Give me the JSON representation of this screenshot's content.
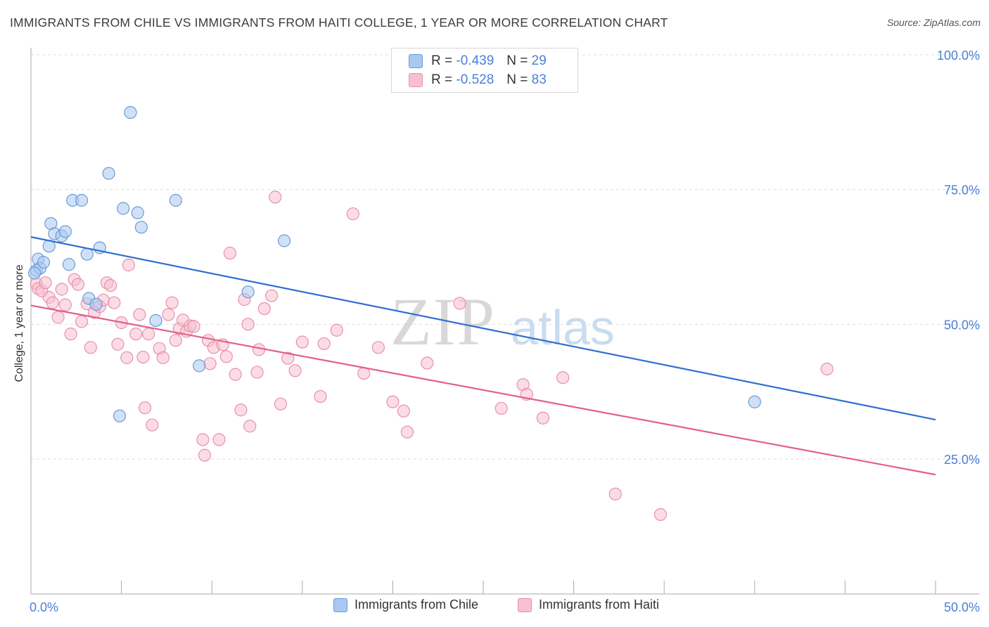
{
  "title": "IMMIGRANTS FROM CHILE VS IMMIGRANTS FROM HAITI COLLEGE, 1 YEAR OR MORE CORRELATION CHART",
  "source": "Source: ZipAtlas.com",
  "watermark": {
    "zip": "ZIP",
    "atlas": "atlas"
  },
  "legend": {
    "chile": {
      "r_label": "R =",
      "r_value": "-0.439",
      "n_label": "N =",
      "n_value": "29",
      "name": "Immigrants from Chile"
    },
    "haiti": {
      "r_label": "R =",
      "r_value": "-0.528",
      "n_label": "N =",
      "n_value": "83",
      "name": "Immigrants from Haiti"
    }
  },
  "colors": {
    "chile_fill": "#aac8f0",
    "chile_stroke": "#6a9bd8",
    "chile_line": "#2f6fd0",
    "haiti_fill": "#f7c0d0",
    "haiti_stroke": "#e890ac",
    "haiti_line": "#e0608a",
    "axis_text": "#4a7fd6",
    "grid": "#dddddd"
  },
  "chart_data": {
    "type": "scatter",
    "title": "IMMIGRANTS FROM CHILE VS IMMIGRANTS FROM HAITI COLLEGE, 1 YEAR OR MORE CORRELATION CHART",
    "xlabel": "",
    "ylabel": "College, 1 year or more",
    "xlim": [
      0,
      50
    ],
    "ylim": [
      0,
      105
    ],
    "x_tick_labels": [
      "0.0%",
      "50.0%"
    ],
    "y_tick_values": [
      25,
      50,
      75,
      100
    ],
    "y_tick_labels": [
      "25.0%",
      "50.0%",
      "75.0%",
      "100.0%"
    ],
    "grid": true,
    "legend_placement": "top-center and bottom",
    "series": [
      {
        "name": "Immigrants from Chile",
        "r": -0.439,
        "n": 29,
        "trend": {
          "x": [
            0,
            50
          ],
          "y": [
            66.2,
            32.3
          ]
        },
        "points": [
          [
            0.3,
            60.0
          ],
          [
            0.4,
            62.1
          ],
          [
            0.5,
            60.4
          ],
          [
            0.7,
            61.5
          ],
          [
            1.0,
            64.5
          ],
          [
            1.1,
            68.7
          ],
          [
            1.3,
            66.8
          ],
          [
            1.7,
            66.4
          ],
          [
            1.9,
            67.2
          ],
          [
            2.1,
            61.1
          ],
          [
            2.3,
            73.0
          ],
          [
            2.8,
            73.0
          ],
          [
            3.1,
            63.0
          ],
          [
            3.2,
            54.8
          ],
          [
            3.6,
            53.7
          ],
          [
            3.8,
            64.2
          ],
          [
            4.3,
            78.0
          ],
          [
            4.9,
            33.0
          ],
          [
            5.1,
            71.5
          ],
          [
            5.5,
            89.3
          ],
          [
            5.9,
            70.7
          ],
          [
            6.1,
            68.0
          ],
          [
            6.9,
            50.7
          ],
          [
            8.0,
            73.0
          ],
          [
            9.3,
            42.3
          ],
          [
            12.0,
            56.0
          ],
          [
            14.0,
            65.5
          ],
          [
            40.0,
            35.6
          ],
          [
            0.2,
            59.5
          ]
        ]
      },
      {
        "name": "Immigrants from Haiti",
        "r": -0.528,
        "n": 83,
        "trend": {
          "x": [
            0,
            50
          ],
          "y": [
            53.5,
            22.1
          ]
        },
        "points": [
          [
            0.3,
            57.5
          ],
          [
            0.4,
            56.6
          ],
          [
            0.6,
            56.2
          ],
          [
            0.8,
            57.7
          ],
          [
            1.0,
            55.0
          ],
          [
            1.2,
            54.0
          ],
          [
            1.5,
            51.3
          ],
          [
            1.7,
            56.5
          ],
          [
            1.9,
            53.6
          ],
          [
            2.2,
            48.2
          ],
          [
            2.4,
            58.3
          ],
          [
            2.6,
            57.4
          ],
          [
            2.8,
            50.5
          ],
          [
            3.1,
            53.8
          ],
          [
            3.3,
            45.7
          ],
          [
            3.5,
            52.2
          ],
          [
            3.8,
            53.3
          ],
          [
            4.0,
            54.5
          ],
          [
            4.2,
            57.7
          ],
          [
            4.4,
            57.2
          ],
          [
            4.6,
            54.0
          ],
          [
            4.8,
            46.3
          ],
          [
            5.0,
            50.3
          ],
          [
            5.3,
            43.8
          ],
          [
            5.4,
            61.0
          ],
          [
            5.8,
            48.2
          ],
          [
            6.0,
            51.8
          ],
          [
            6.2,
            43.9
          ],
          [
            6.3,
            34.5
          ],
          [
            6.5,
            48.2
          ],
          [
            6.7,
            31.3
          ],
          [
            7.1,
            45.5
          ],
          [
            7.3,
            43.8
          ],
          [
            7.6,
            51.8
          ],
          [
            7.8,
            54.0
          ],
          [
            8.0,
            47.0
          ],
          [
            8.2,
            49.2
          ],
          [
            8.4,
            50.8
          ],
          [
            8.6,
            48.7
          ],
          [
            8.8,
            49.7
          ],
          [
            9.0,
            49.6
          ],
          [
            9.5,
            28.6
          ],
          [
            9.6,
            25.7
          ],
          [
            9.8,
            47.0
          ],
          [
            9.9,
            42.7
          ],
          [
            10.1,
            45.7
          ],
          [
            10.4,
            28.6
          ],
          [
            10.6,
            46.2
          ],
          [
            10.8,
            44.0
          ],
          [
            11.0,
            63.2
          ],
          [
            11.3,
            40.7
          ],
          [
            11.6,
            34.1
          ],
          [
            11.8,
            54.6
          ],
          [
            12.0,
            50.0
          ],
          [
            12.1,
            31.1
          ],
          [
            12.5,
            41.1
          ],
          [
            12.6,
            45.3
          ],
          [
            12.9,
            52.9
          ],
          [
            13.3,
            55.3
          ],
          [
            13.5,
            73.6
          ],
          [
            13.8,
            35.2
          ],
          [
            14.2,
            43.7
          ],
          [
            14.6,
            41.4
          ],
          [
            15.0,
            46.7
          ],
          [
            16.0,
            36.6
          ],
          [
            16.2,
            46.4
          ],
          [
            16.9,
            48.9
          ],
          [
            17.8,
            70.5
          ],
          [
            18.4,
            40.9
          ],
          [
            19.2,
            45.7
          ],
          [
            20.0,
            35.6
          ],
          [
            20.6,
            33.9
          ],
          [
            20.8,
            30.0
          ],
          [
            21.9,
            42.8
          ],
          [
            23.7,
            53.9
          ],
          [
            26.0,
            34.4
          ],
          [
            27.2,
            38.8
          ],
          [
            27.4,
            37.0
          ],
          [
            28.3,
            32.6
          ],
          [
            29.4,
            40.1
          ],
          [
            32.3,
            18.5
          ],
          [
            34.8,
            14.7
          ],
          [
            44.0,
            41.7
          ]
        ]
      }
    ]
  }
}
